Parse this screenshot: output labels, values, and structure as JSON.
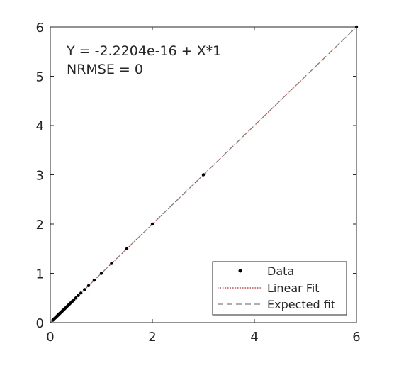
{
  "chart_data": {
    "type": "scatter",
    "xlim": [
      0,
      6
    ],
    "ylim": [
      0,
      6
    ],
    "x_ticks": [
      0,
      2,
      4,
      6
    ],
    "y_ticks": [
      0,
      1,
      2,
      3,
      4,
      5,
      6
    ],
    "annotations": [
      "Y = -2.2204e-16 + X*1",
      "NRMSE = 0"
    ],
    "legend_position": "bottom-right",
    "series": [
      {
        "name": "Data",
        "kind": "points",
        "color": "#000000",
        "points": [
          [
            0.05,
            0.05
          ],
          [
            0.06,
            0.06
          ],
          [
            0.07,
            0.07
          ],
          [
            0.08,
            0.08
          ],
          [
            0.09,
            0.09
          ],
          [
            0.1,
            0.1
          ],
          [
            0.11,
            0.11
          ],
          [
            0.12,
            0.12
          ],
          [
            0.13,
            0.13
          ],
          [
            0.14,
            0.14
          ],
          [
            0.15,
            0.15
          ],
          [
            0.16,
            0.16
          ],
          [
            0.17,
            0.17
          ],
          [
            0.18,
            0.18
          ],
          [
            0.19,
            0.19
          ],
          [
            0.2,
            0.2
          ],
          [
            0.21,
            0.21
          ],
          [
            0.22,
            0.22
          ],
          [
            0.23,
            0.23
          ],
          [
            0.24,
            0.24
          ],
          [
            0.25,
            0.25
          ],
          [
            0.26,
            0.26
          ],
          [
            0.27,
            0.27
          ],
          [
            0.28,
            0.28
          ],
          [
            0.29,
            0.29
          ],
          [
            0.3,
            0.3
          ],
          [
            0.32,
            0.32
          ],
          [
            0.34,
            0.34
          ],
          [
            0.36,
            0.36
          ],
          [
            0.38,
            0.38
          ],
          [
            0.4,
            0.4
          ],
          [
            0.43,
            0.43
          ],
          [
            0.46,
            0.46
          ],
          [
            0.5,
            0.5
          ],
          [
            0.55,
            0.55
          ],
          [
            0.6,
            0.6
          ],
          [
            0.67,
            0.67
          ],
          [
            0.75,
            0.75
          ],
          [
            0.86,
            0.86
          ],
          [
            1.0,
            1.0
          ],
          [
            1.2,
            1.2
          ],
          [
            1.5,
            1.5
          ],
          [
            2.0,
            2.0
          ],
          [
            3.0,
            3.0
          ],
          [
            6.0,
            6.0
          ]
        ]
      },
      {
        "name": "Linear Fit",
        "kind": "line",
        "style": "dotted",
        "color": "#d62020",
        "intercept": -2.2204e-16,
        "slope": 1
      },
      {
        "name": "Expected fit",
        "kind": "line",
        "style": "dashed",
        "color": "#7f7f7f",
        "intercept": 0,
        "slope": 1
      }
    ]
  }
}
